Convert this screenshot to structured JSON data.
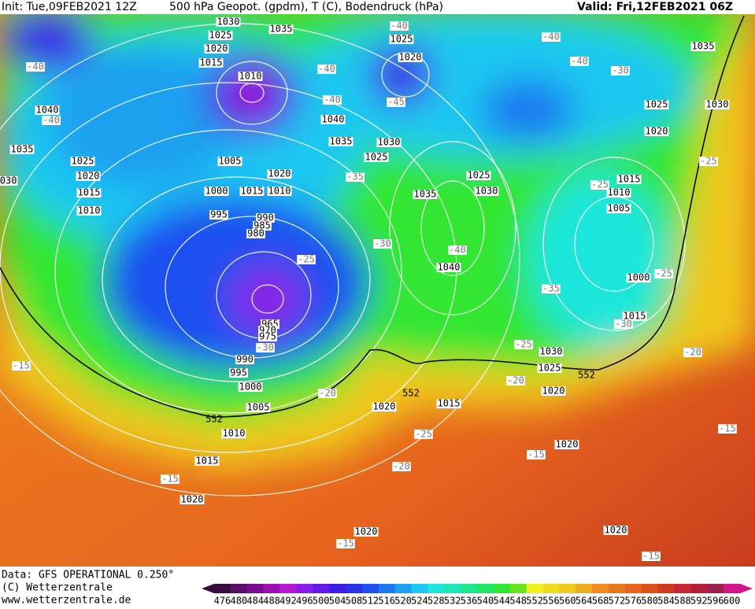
{
  "header": {
    "init": "Init: Tue,09FEB2021 12Z",
    "title": "500 hPa Geopot. (gpdm), T (C), Bodendruck (hPa)",
    "valid": "Valid: Fri,12FEB2021 06Z"
  },
  "map": {
    "pressure_labels": [
      "1030",
      "1025",
      "1020",
      "1015",
      "1035",
      "1010",
      "1040",
      "1035",
      "1025",
      "1020",
      "1015",
      "1010",
      "1000",
      "1015",
      "1010",
      "1005",
      "1020",
      "995",
      "990",
      "985",
      "980",
      "1040",
      "1035",
      "1030",
      "1025",
      "1025",
      "1020",
      "1035",
      "1025",
      "1030",
      "1040",
      "1035",
      "1025",
      "1030",
      "1020",
      "1015",
      "1010",
      "1005",
      "1000",
      "1015",
      "965",
      "970",
      "975",
      "990",
      "995",
      "1000",
      "1005",
      "1010",
      "1015",
      "1020",
      "1020",
      "1015",
      "1030",
      "1025",
      "1020",
      "1020",
      "1020",
      "1020",
      "1030"
    ],
    "contour_552_labels": [
      "552",
      "552",
      "552"
    ],
    "temperature_labels": [
      "-40",
      "-40",
      "-45",
      "-40",
      "-40",
      "-40",
      "-40",
      "-40",
      "-30",
      "-35",
      "-30",
      "-25",
      "-40",
      "-35",
      "-30",
      "-25",
      "-25",
      "-20",
      "-25",
      "-25",
      "-30",
      "-15",
      "-20",
      "-20",
      "-25",
      "-15",
      "-20",
      "-15",
      "-15",
      "-15",
      "-15"
    ]
  },
  "footer": {
    "data": "Data: GFS OPERATIONAL 0.250°",
    "copyright": "(C) Wetterzentrale",
    "url": "www.wetterzentrale.de"
  },
  "colorbar": {
    "labels": [
      "476",
      "480",
      "484",
      "488",
      "492",
      "496",
      "500",
      "504",
      "508",
      "512",
      "516",
      "520",
      "524",
      "528",
      "532",
      "536",
      "540",
      "544",
      "548",
      "552",
      "556",
      "560",
      "564",
      "568",
      "572",
      "576",
      "580",
      "584",
      "588",
      "592",
      "596",
      "600"
    ],
    "colors": [
      "#3a0a3f",
      "#5c0a6b",
      "#7a0a8e",
      "#9b10b0",
      "#b51ad0",
      "#8c1ae6",
      "#6419e6",
      "#3c1ee6",
      "#2832e6",
      "#1e50f0",
      "#1e78f0",
      "#1ea0f0",
      "#1ec8f0",
      "#1ee6dc",
      "#1ee6b4",
      "#1ee68c",
      "#1ee664",
      "#32e632",
      "#64e61e",
      "#f0f01e",
      "#f0dc1e",
      "#f0c81e",
      "#f0aa1e",
      "#f08c1e",
      "#e6781e",
      "#e6641e",
      "#dc501e",
      "#d23c1e",
      "#c82832",
      "#b41e3c",
      "#a01e50",
      "#d2148c"
    ]
  }
}
